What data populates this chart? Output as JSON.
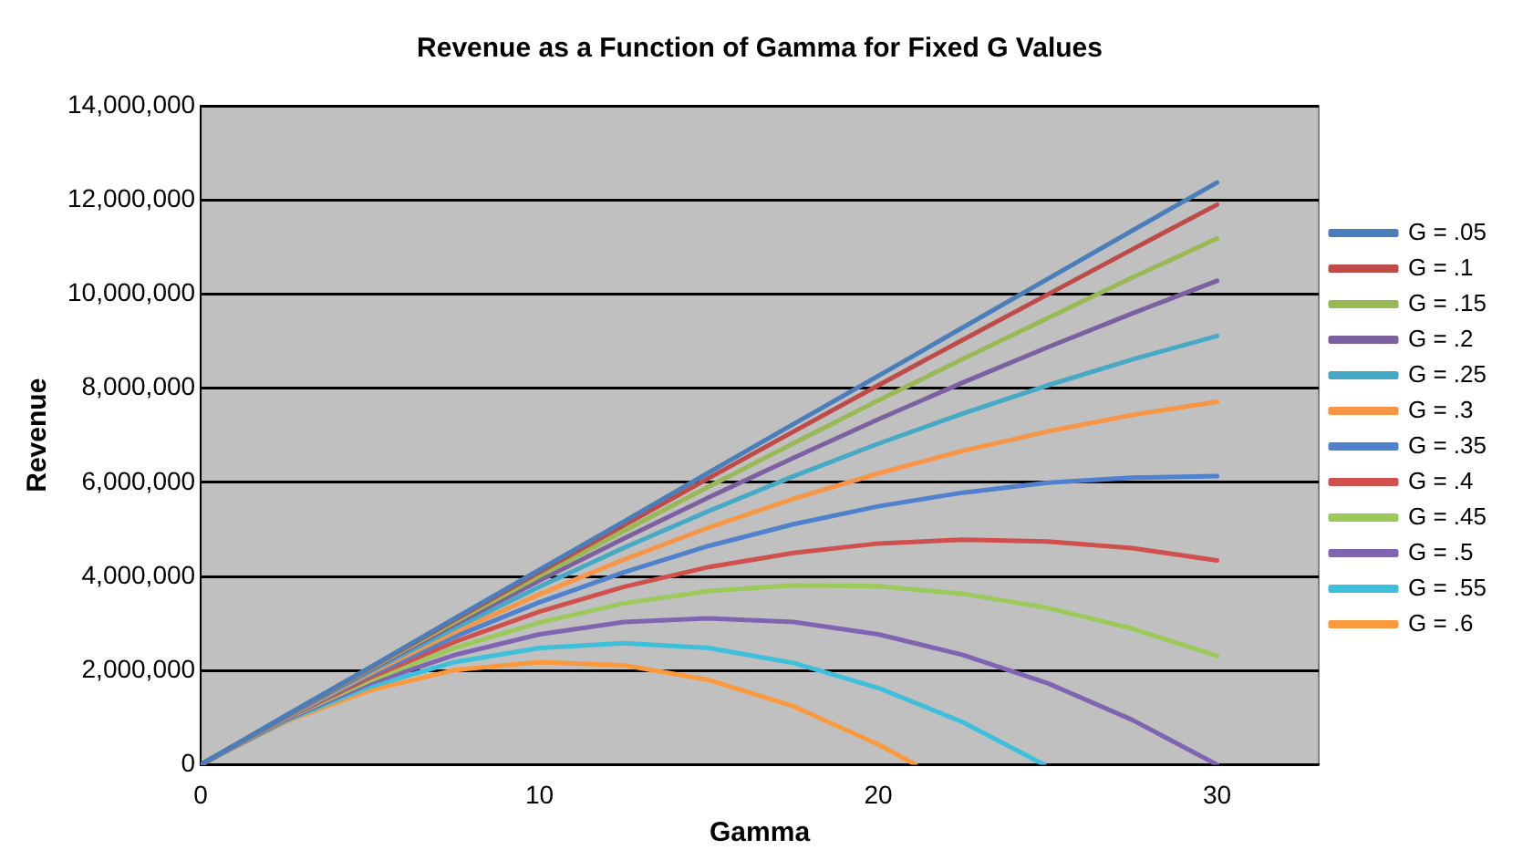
{
  "chart_data": {
    "type": "line",
    "title": "Revenue as a Function of Gamma for Fixed G Values",
    "xlabel": "Gamma",
    "ylabel": "Revenue",
    "x": [
      0,
      2.5,
      5,
      7.5,
      10,
      12.5,
      15,
      17.5,
      20,
      22.5,
      25,
      27.5,
      30
    ],
    "xlim": [
      0,
      33
    ],
    "xticks": [
      0,
      10,
      20,
      30
    ],
    "ylim": [
      0,
      14000000
    ],
    "yticks": [
      0,
      {
        "value": 2000000,
        "label": "2,000,000"
      },
      {
        "value": 4000000,
        "label": "4,000,000"
      },
      {
        "value": 6000000,
        "label": "6,000,000"
      },
      {
        "value": 8000000,
        "label": "8,000,000"
      },
      {
        "value": 10000000,
        "label": "10,000,000"
      },
      {
        "value": 12000000,
        "label": "12,000,000"
      },
      {
        "value": 14000000,
        "label": "14,000,000"
      }
    ],
    "grid": "y",
    "legend": "right",
    "marker": "none",
    "line_style": "solid",
    "series": [
      {
        "name": "G = .05",
        "color": "#4a7ebb",
        "values": [
          0,
          1040000,
          2070000,
          3110000,
          4140000,
          5170000,
          6210000,
          7240000,
          8260000,
          9290000,
          10320000,
          11350000,
          12370000
        ]
      },
      {
        "name": "G = .1",
        "color": "#be4b48",
        "values": [
          0,
          1030000,
          2060000,
          3080000,
          4090000,
          5090000,
          6090000,
          7080000,
          8060000,
          9030000,
          9990000,
          10950000,
          11900000
        ]
      },
      {
        "name": "G = .15",
        "color": "#98b954",
        "values": [
          0,
          1030000,
          2040000,
          3030000,
          4010000,
          4970000,
          5910000,
          6830000,
          7740000,
          8620000,
          9490000,
          10350000,
          11180000
        ]
      },
      {
        "name": "G = .2",
        "color": "#7d60a0",
        "values": [
          0,
          1020000,
          2010000,
          2980000,
          3910000,
          4810000,
          5680000,
          6520000,
          7340000,
          8120000,
          8870000,
          9590000,
          10280000
        ]
      },
      {
        "name": "G = .25",
        "color": "#46aac5",
        "values": [
          0,
          1010000,
          1980000,
          2900000,
          3780000,
          4610000,
          5390000,
          6130000,
          6820000,
          7460000,
          8060000,
          8610000,
          9110000
        ]
      },
      {
        "name": "G = .3",
        "color": "#f79646",
        "values": [
          0,
          1000000,
          1940000,
          2820000,
          3620000,
          4360000,
          5040000,
          5650000,
          6190000,
          6670000,
          7080000,
          7430000,
          7710000
        ]
      },
      {
        "name": "G = .35",
        "color": "#4f81cd",
        "values": [
          0,
          990000,
          1900000,
          2720000,
          3450000,
          4090000,
          4650000,
          5110000,
          5490000,
          5780000,
          5990000,
          6100000,
          6130000
        ]
      },
      {
        "name": "G = .4",
        "color": "#d0504d",
        "values": [
          0,
          980000,
          1850000,
          2610000,
          3250000,
          3780000,
          4200000,
          4500000,
          4700000,
          4780000,
          4740000,
          4600000,
          4340000
        ]
      },
      {
        "name": "G = .45",
        "color": "#9bc95a",
        "values": [
          0,
          970000,
          1790000,
          2480000,
          3020000,
          3430000,
          3690000,
          3810000,
          3790000,
          3630000,
          3330000,
          2890000,
          2310000
        ]
      },
      {
        "name": "G = .5",
        "color": "#8064b2",
        "values": [
          0,
          950000,
          1730000,
          2330000,
          2770000,
          3030000,
          3110000,
          3030000,
          2770000,
          2330000,
          1730000,
          950000,
          0
        ]
      },
      {
        "name": "G = .55",
        "color": "#3cc0dc",
        "x": [
          0,
          2.5,
          5,
          7.5,
          10,
          12.5,
          15,
          17.5,
          20,
          22.5,
          24.9
        ],
        "values": [
          0,
          930000,
          1660000,
          2180000,
          2480000,
          2580000,
          2480000,
          2160000,
          1630000,
          900000,
          0
        ]
      },
      {
        "name": "G = .6",
        "color": "#fb9a3c",
        "x": [
          0,
          2.5,
          5,
          7.5,
          10,
          12.5,
          15,
          17.5,
          20,
          21.1
        ],
        "values": [
          0,
          910000,
          1580000,
          2010000,
          2180000,
          2110000,
          1800000,
          1240000,
          430000,
          0
        ]
      }
    ]
  }
}
